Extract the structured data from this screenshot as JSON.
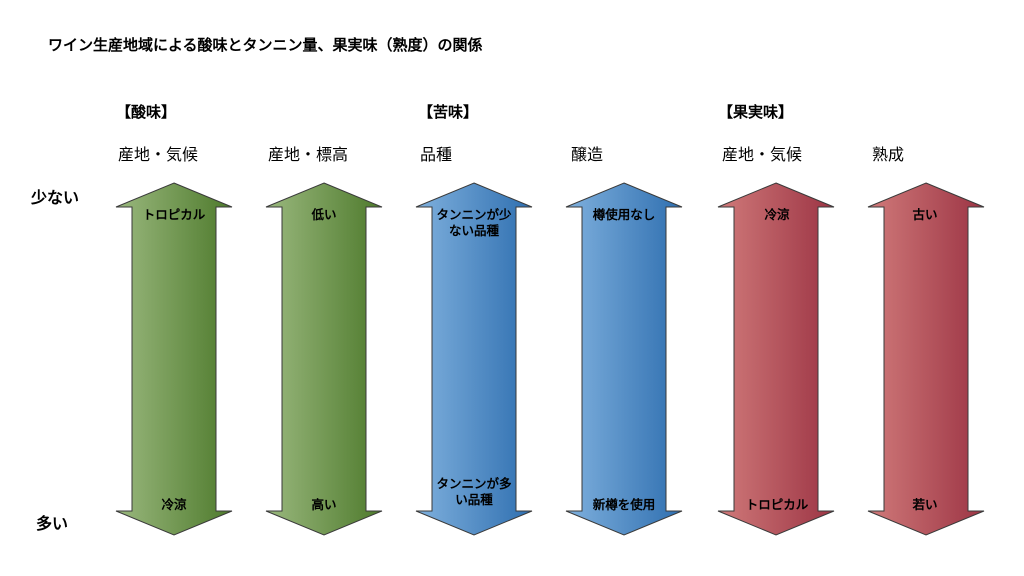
{
  "title": "ワイン生産地域による酸味とタンニン量、果実味（熟度）の関係",
  "axis": {
    "top_label": "少ない",
    "bottom_label": "多い"
  },
  "categories": [
    {
      "label": "【酸味】"
    },
    {
      "label": "【苦味】"
    },
    {
      "label": "【果実味】"
    }
  ],
  "columns": [
    {
      "factor": "産地・気候",
      "top": "トロピカル",
      "bottom": "冷涼",
      "color": "green"
    },
    {
      "factor": "産地・標高",
      "top": "低い",
      "bottom": "高い",
      "color": "green"
    },
    {
      "factor": "品種",
      "top": "タンニンが少ない品種",
      "bottom": "タンニンが多い品種",
      "color": "blue"
    },
    {
      "factor": "醸造",
      "top": "樽使用なし",
      "bottom": "新樽を使用",
      "color": "blue"
    },
    {
      "factor": "産地・気候",
      "top": "冷涼",
      "bottom": "トロピカル",
      "color": "red"
    },
    {
      "factor": "熟成",
      "top": "古い",
      "bottom": "若い",
      "color": "red"
    }
  ],
  "colors": {
    "green_light": "#9ab87e",
    "green_dark": "#4e7a2c",
    "blue_light": "#7fb0dd",
    "blue_dark": "#2f6fb0",
    "red_light": "#d07a7a",
    "red_dark": "#9c3444",
    "outline": "#3a3a3a"
  }
}
